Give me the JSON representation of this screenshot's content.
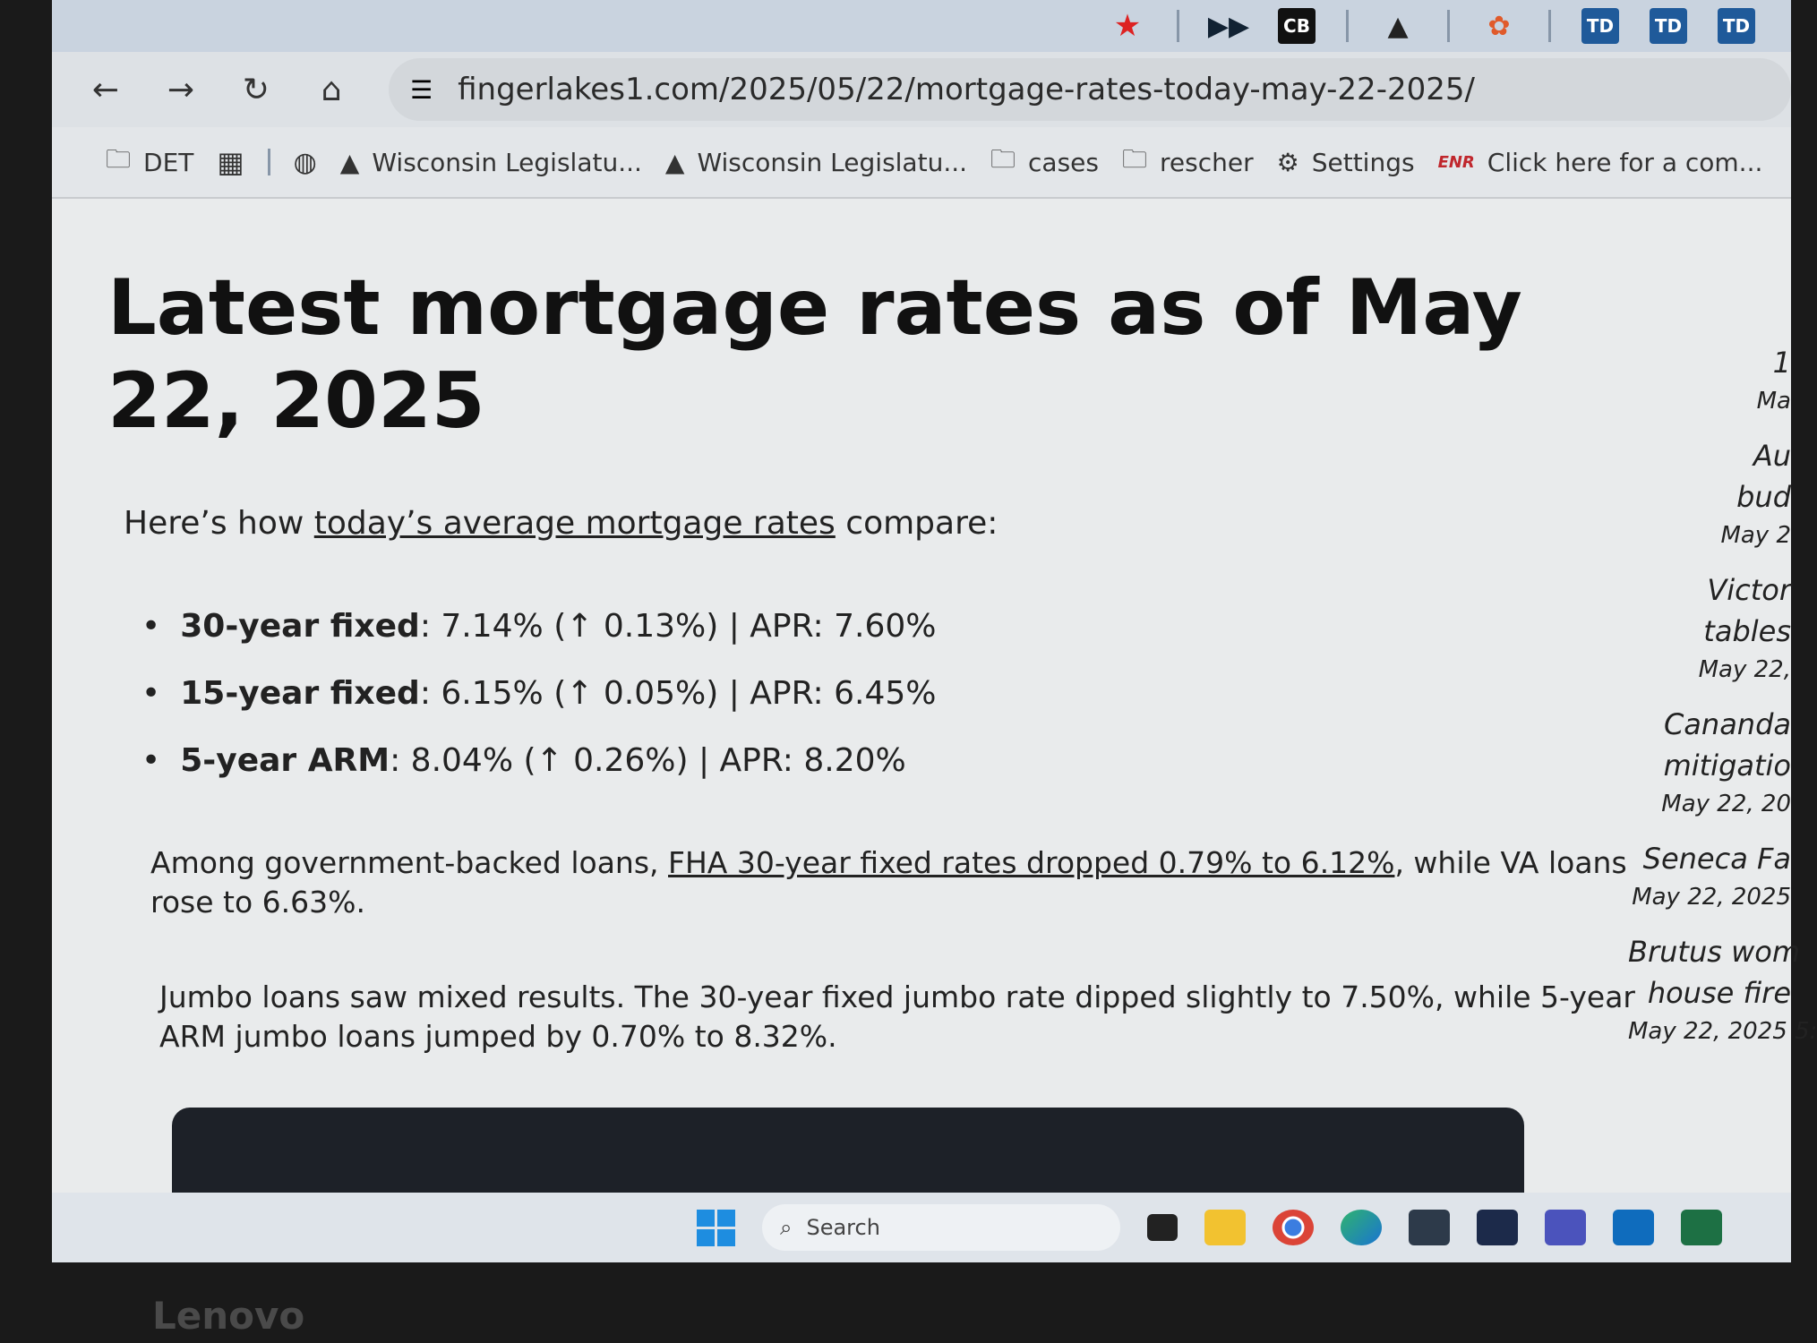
{
  "browser": {
    "tab_icons": [
      "star-icon",
      "cb-icon",
      "capitol-icon",
      "nbc-icon",
      "td-icon",
      "td-icon",
      "td-icon"
    ],
    "tab_icon_labels": {
      "cb": "CB",
      "td": "TD"
    },
    "url": "fingerlakes1.com/2025/05/22/mortgage-rates-today-may-22-2025/",
    "bookmarks": [
      "DET",
      "Wisconsin Legislatu...",
      "Wisconsin Legislatu...",
      "cases",
      "rescher",
      "Settings",
      "Click here for a com..."
    ],
    "enr_badge": "ENR"
  },
  "article": {
    "title": "Latest mortgage rates as of May 22, 2025",
    "intro_pre": "Here’s how ",
    "intro_link": "today’s average mortgage rates",
    "intro_post": " compare:",
    "rates": [
      {
        "label": "30-year fixed",
        "detail": ": 7.14% (↑ 0.13%) | APR: 7.60%"
      },
      {
        "label": "15-year fixed",
        "detail": ": 6.15% (↑ 0.05%) | APR: 6.45%"
      },
      {
        "label": "5-year ARM",
        "detail": ": 8.04% (↑ 0.26%) | APR: 8.20%"
      }
    ],
    "gov_pre": "Among government-backed loans, ",
    "gov_link": "FHA 30-year fixed rates dropped 0.79% to 6.12%",
    "gov_post": ", while VA loans rose to 6.63%.",
    "jumbo": "Jumbo loans saw mixed results. The 30-year fixed jumbo rate dipped slightly to 7.50%, while 5-year ARM jumbo loans jumped by 0.70% to 8.32%."
  },
  "sidebar": [
    {
      "lines": [
        "1"
      ],
      "date": "Ma"
    },
    {
      "lines": [
        "Au",
        "bud"
      ],
      "date": "May 2"
    },
    {
      "lines": [
        "Victor",
        "tables"
      ],
      "date": "May 22,"
    },
    {
      "lines": [
        "Cananda",
        "mitigatio"
      ],
      "date": "May 22, 20"
    },
    {
      "lines": [
        "Seneca Fa"
      ],
      "date": "May 22, 2025"
    },
    {
      "lines": [
        "Brutus wom",
        "house fire"
      ],
      "date": "May 22, 2025 5:"
    }
  ],
  "taskbar": {
    "search_placeholder": "Search"
  },
  "bezel_brand": "Lenovo"
}
